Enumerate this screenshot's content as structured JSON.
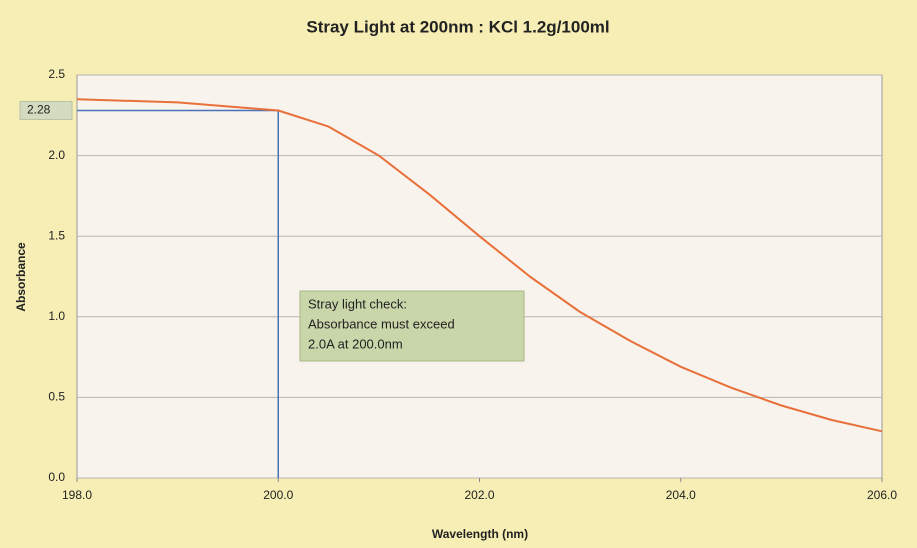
{
  "chart_data": {
    "type": "line",
    "title": "Stray Light at 200nm : KCl  1.2g/100ml",
    "xlabel": "Wavelength (nm)",
    "ylabel": "Absorbance",
    "x": [
      198,
      199,
      200,
      200.5,
      201,
      201.5,
      202,
      202.5,
      203,
      203.5,
      204,
      204.5,
      205,
      205.5,
      206
    ],
    "values": [
      2.35,
      2.33,
      2.28,
      2.18,
      2.0,
      1.76,
      1.5,
      1.25,
      1.03,
      0.85,
      0.69,
      0.56,
      0.45,
      0.36,
      0.29
    ],
    "color": "#e8703a",
    "xlim": [
      198,
      206
    ],
    "xticks": [
      {
        "value": 198,
        "label": "198.0"
      },
      {
        "value": 200,
        "label": "200.0"
      },
      {
        "value": 202,
        "label": "202.0"
      },
      {
        "value": 204,
        "label": "204.0"
      },
      {
        "value": 206,
        "label": "206.0"
      }
    ],
    "ylim": [
      0,
      2.5
    ],
    "yticks": [
      {
        "value": 0,
        "label": "0.0"
      },
      0.5,
      {
        "value": 1,
        "label": "1.0"
      },
      1.5,
      {
        "value": 2,
        "label": "2.0"
      },
      2.5
    ],
    "grid": true,
    "marker": {
      "x": 200,
      "y": 2.28,
      "color": "#4a72b8"
    },
    "annotation": [
      "Stray light check:",
      "Absorbance must exceed",
      "2.0A at 200.0nm"
    ]
  }
}
